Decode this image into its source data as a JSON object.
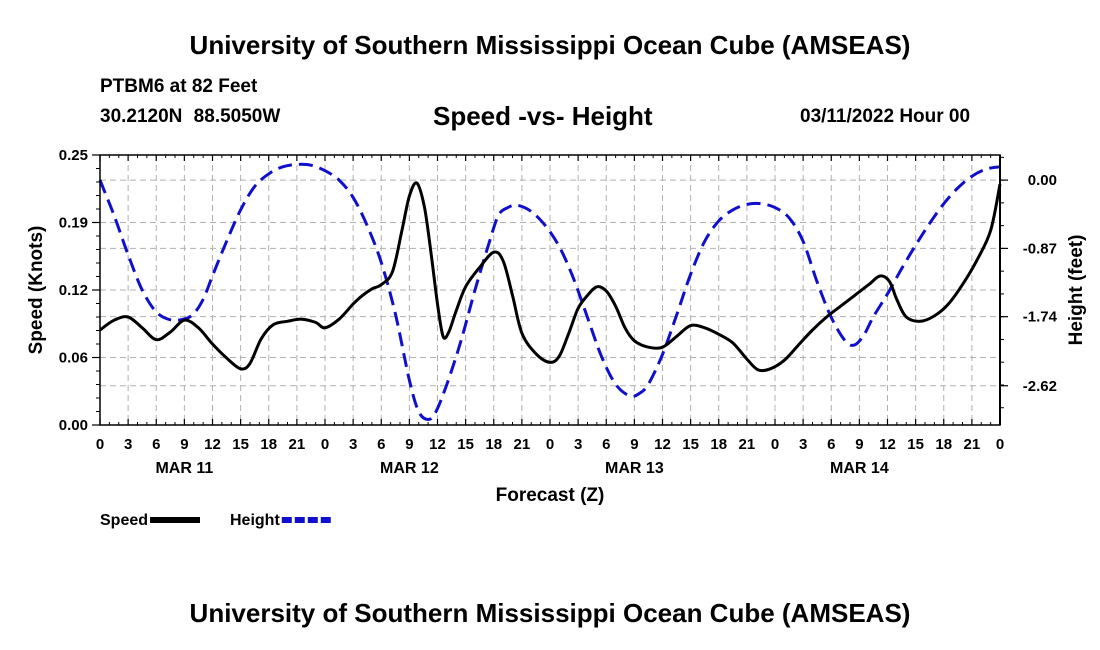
{
  "header": {
    "title": "University of Southern Mississippi Ocean Cube (AMSEAS)",
    "station": "PTBM6 at 82 Feet",
    "latlon": "30.2120N  88.5050W",
    "subtitle": "Speed -vs- Height",
    "datetime": "03/11/2022 Hour 00"
  },
  "footer": {
    "title": "University of Southern Mississippi Ocean Cube (AMSEAS)"
  },
  "chart_data": {
    "type": "line",
    "title": "Speed -vs- Height",
    "xlabel": "Forecast (Z)",
    "ylabel": "Speed (Knots)",
    "y2label": "Height (feet)",
    "xlim": [
      0,
      96
    ],
    "ylim": [
      0,
      0.25
    ],
    "y2lim": [
      -3.12,
      0.32
    ],
    "x_tick_labels": [
      "0",
      "3",
      "6",
      "9",
      "12",
      "15",
      "18",
      "21",
      "0",
      "3",
      "6",
      "9",
      "12",
      "15",
      "18",
      "21",
      "0",
      "3",
      "6",
      "9",
      "12",
      "15",
      "18",
      "21",
      "0",
      "3",
      "6",
      "9",
      "12",
      "15",
      "18",
      "21",
      "0"
    ],
    "date_labels": [
      {
        "hour": 9,
        "label": "MAR 11"
      },
      {
        "hour": 33,
        "label": "MAR 12"
      },
      {
        "hour": 57,
        "label": "MAR 13"
      },
      {
        "hour": 81,
        "label": "MAR 14"
      }
    ],
    "y_ticks": [
      "0.00",
      "0.06",
      "0.12",
      "0.19",
      "0.25"
    ],
    "y_tick_values": [
      0,
      0.0625,
      0.125,
      0.1875,
      0.25
    ],
    "y2_ticks": [
      "0.00",
      "-0.87",
      "-1.74",
      "-2.62"
    ],
    "y2_tick_values": [
      0,
      -0.87,
      -1.74,
      -2.62
    ],
    "legend": [
      {
        "label": "Speed",
        "color": "#000000",
        "style": "solid"
      },
      {
        "label": "Height",
        "color": "#1010cc",
        "style": "dashed"
      }
    ],
    "series": [
      {
        "name": "Speed",
        "axis": "left",
        "color": "#000000",
        "points": [
          [
            0,
            0.088
          ],
          [
            1.5,
            0.097
          ],
          [
            3,
            0.1
          ],
          [
            4.5,
            0.09
          ],
          [
            6,
            0.079
          ],
          [
            7.5,
            0.086
          ],
          [
            9,
            0.097
          ],
          [
            10.5,
            0.09
          ],
          [
            12,
            0.075
          ],
          [
            13.5,
            0.062
          ],
          [
            15,
            0.052
          ],
          [
            16,
            0.057
          ],
          [
            17.2,
            0.08
          ],
          [
            18.5,
            0.093
          ],
          [
            20,
            0.096
          ],
          [
            21.5,
            0.098
          ],
          [
            23,
            0.095
          ],
          [
            24,
            0.09
          ],
          [
            25.5,
            0.098
          ],
          [
            27,
            0.112
          ],
          [
            28,
            0.12
          ],
          [
            29,
            0.126
          ],
          [
            30,
            0.13
          ],
          [
            31.2,
            0.142
          ],
          [
            32.2,
            0.18
          ],
          [
            33,
            0.212
          ],
          [
            33.8,
            0.224
          ],
          [
            34.6,
            0.202
          ],
          [
            35.3,
            0.16
          ],
          [
            36,
            0.112
          ],
          [
            36.6,
            0.082
          ],
          [
            37.2,
            0.086
          ],
          [
            38,
            0.106
          ],
          [
            39,
            0.128
          ],
          [
            40.5,
            0.146
          ],
          [
            42,
            0.16
          ],
          [
            43,
            0.152
          ],
          [
            44,
            0.12
          ],
          [
            45,
            0.085
          ],
          [
            46.5,
            0.066
          ],
          [
            48,
            0.058
          ],
          [
            49,
            0.064
          ],
          [
            50,
            0.085
          ],
          [
            51,
            0.108
          ],
          [
            52,
            0.12
          ],
          [
            53,
            0.128
          ],
          [
            54,
            0.124
          ],
          [
            55,
            0.11
          ],
          [
            56,
            0.09
          ],
          [
            57,
            0.078
          ],
          [
            58.5,
            0.072
          ],
          [
            60,
            0.072
          ],
          [
            61.5,
            0.082
          ],
          [
            63,
            0.092
          ],
          [
            64.5,
            0.09
          ],
          [
            66,
            0.084
          ],
          [
            67.5,
            0.076
          ],
          [
            69,
            0.061
          ],
          [
            70.2,
            0.051
          ],
          [
            71.5,
            0.052
          ],
          [
            73,
            0.06
          ],
          [
            74.5,
            0.074
          ],
          [
            76,
            0.088
          ],
          [
            77.5,
            0.1
          ],
          [
            79,
            0.11
          ],
          [
            80.5,
            0.12
          ],
          [
            82,
            0.13
          ],
          [
            83.2,
            0.138
          ],
          [
            84.2,
            0.133
          ],
          [
            85,
            0.116
          ],
          [
            86,
            0.1
          ],
          [
            87.5,
            0.096
          ],
          [
            89,
            0.101
          ],
          [
            90.5,
            0.112
          ],
          [
            92,
            0.13
          ],
          [
            93.5,
            0.152
          ],
          [
            95,
            0.18
          ],
          [
            96,
            0.223
          ]
        ]
      },
      {
        "name": "Height",
        "axis": "right",
        "color": "#1010cc",
        "points": [
          [
            0,
            0.0
          ],
          [
            1.5,
            -0.45
          ],
          [
            3,
            -0.95
          ],
          [
            4.5,
            -1.4
          ],
          [
            6,
            -1.68
          ],
          [
            7.5,
            -1.78
          ],
          [
            9,
            -1.77
          ],
          [
            10,
            -1.7
          ],
          [
            11,
            -1.52
          ],
          [
            12,
            -1.22
          ],
          [
            13.5,
            -0.78
          ],
          [
            15,
            -0.38
          ],
          [
            16.5,
            -0.08
          ],
          [
            18,
            0.08
          ],
          [
            19.5,
            0.17
          ],
          [
            21,
            0.2
          ],
          [
            22.5,
            0.19
          ],
          [
            24,
            0.12
          ],
          [
            25.5,
            0.0
          ],
          [
            27,
            -0.22
          ],
          [
            28.5,
            -0.58
          ],
          [
            30,
            -1.05
          ],
          [
            31.5,
            -1.7
          ],
          [
            33,
            -2.55
          ],
          [
            34,
            -2.95
          ],
          [
            35,
            -3.05
          ],
          [
            35.8,
            -2.96
          ],
          [
            37,
            -2.6
          ],
          [
            38.5,
            -2.05
          ],
          [
            40,
            -1.4
          ],
          [
            41.5,
            -0.8
          ],
          [
            42.5,
            -0.45
          ],
          [
            43.5,
            -0.35
          ],
          [
            44.5,
            -0.32
          ],
          [
            46,
            -0.4
          ],
          [
            47.5,
            -0.58
          ],
          [
            49,
            -0.85
          ],
          [
            50.5,
            -1.25
          ],
          [
            52,
            -1.75
          ],
          [
            53.5,
            -2.25
          ],
          [
            55,
            -2.6
          ],
          [
            56.5,
            -2.75
          ],
          [
            57.5,
            -2.72
          ],
          [
            58.5,
            -2.6
          ],
          [
            60,
            -2.22
          ],
          [
            61.5,
            -1.72
          ],
          [
            63,
            -1.2
          ],
          [
            64.5,
            -0.78
          ],
          [
            66,
            -0.52
          ],
          [
            67.5,
            -0.38
          ],
          [
            69,
            -0.31
          ],
          [
            70.5,
            -0.3
          ],
          [
            72,
            -0.35
          ],
          [
            73.5,
            -0.48
          ],
          [
            75,
            -0.78
          ],
          [
            76.5,
            -1.3
          ],
          [
            78,
            -1.75
          ],
          [
            79.5,
            -2.05
          ],
          [
            80.5,
            -2.1
          ],
          [
            81.5,
            -1.97
          ],
          [
            82.5,
            -1.74
          ],
          [
            84,
            -1.45
          ],
          [
            85.5,
            -1.13
          ],
          [
            87,
            -0.83
          ],
          [
            88.5,
            -0.55
          ],
          [
            90,
            -0.3
          ],
          [
            91.5,
            -0.1
          ],
          [
            93,
            0.05
          ],
          [
            94.5,
            0.14
          ],
          [
            96,
            0.17
          ]
        ]
      }
    ]
  }
}
